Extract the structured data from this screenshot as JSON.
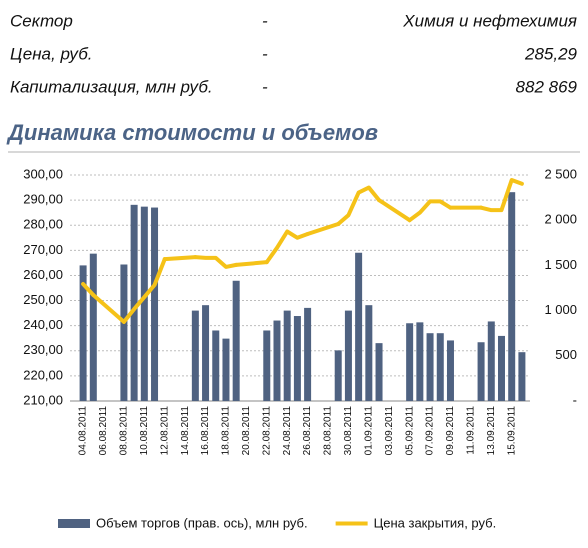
{
  "info": {
    "rows": [
      [
        "Сектор",
        "-",
        "Химия и нефтехимия"
      ],
      [
        "Цена, руб.",
        "-",
        "285,29"
      ],
      [
        "Капитализация, млн руб.",
        "-",
        "882 869"
      ]
    ]
  },
  "chart_data": {
    "type": "bar-line",
    "title": "Динамика стоимости и объемов",
    "categories": [
      "04.08.2011",
      null,
      "06.08.2011",
      null,
      "08.08.2011",
      null,
      "10.08.2011",
      null,
      "12.08.2011",
      null,
      "14.08.2011",
      null,
      "16.08.2011",
      null,
      "18.08.2011",
      null,
      "20.08.2011",
      null,
      "22.08.2011",
      null,
      "24.08.2011",
      null,
      "26.08.2011",
      null,
      "28.08.2011",
      null,
      "30.08.2011",
      null,
      "01.09.2011",
      null,
      "03.09.2011",
      null,
      "05.09.2011",
      null,
      "07.09.2011",
      null,
      "09.09.2011",
      null,
      "11.09.2011",
      null,
      "13.09.2011",
      null,
      "15.09.2011",
      null
    ],
    "series": [
      {
        "name": "Объем торгов (прав. ось), млн руб.",
        "type": "bar",
        "axis": "y2",
        "color": "#4f6281",
        "values": [
          1500,
          1630,
          null,
          null,
          1510,
          2170,
          2150,
          2140,
          null,
          null,
          null,
          1000,
          1060,
          780,
          690,
          1330,
          null,
          null,
          780,
          890,
          1000,
          940,
          1030,
          null,
          null,
          560,
          1000,
          1640,
          1060,
          640,
          null,
          null,
          860,
          870,
          750,
          750,
          670,
          null,
          null,
          650,
          880,
          720,
          2310,
          540
        ]
      },
      {
        "name": "Цена закрытия, руб.",
        "type": "line",
        "color": "#f5c218",
        "values": [
          256.6,
          252.2,
          null,
          null,
          241.5,
          246.6,
          251.4,
          256.2,
          266.5,
          null,
          null,
          267.3,
          267,
          267,
          263.4,
          264.2,
          null,
          null,
          265.3,
          271,
          277.5,
          275,
          276.5,
          null,
          null,
          280.5,
          284,
          293,
          295,
          290,
          null,
          null,
          282,
          285,
          289.5,
          289.5,
          287,
          null,
          null,
          287,
          286,
          286,
          298,
          296.5
        ]
      }
    ],
    "ylim": [
      210,
      300
    ],
    "yticks": [
      {
        "value": 210,
        "label": "210,00"
      },
      {
        "value": 220,
        "label": "220,00"
      },
      {
        "value": 230,
        "label": "230,00"
      },
      {
        "value": 240,
        "label": "240,00"
      },
      {
        "value": 250,
        "label": "250,00"
      },
      {
        "value": 260,
        "label": "260,00"
      },
      {
        "value": 270,
        "label": "270,00"
      },
      {
        "value": 280,
        "label": "280,00"
      },
      {
        "value": 290,
        "label": "290,00"
      },
      {
        "value": 300,
        "label": "300,00"
      }
    ],
    "y2lim": [
      0,
      2500
    ],
    "y2ticks": [
      {
        "value": 0,
        "label": "-"
      },
      {
        "value": 500,
        "label": "500"
      },
      {
        "value": 1000,
        "label": "1 000"
      },
      {
        "value": 1500,
        "label": "1 500"
      },
      {
        "value": 2000,
        "label": "2 000"
      },
      {
        "value": 2500,
        "label": "2 500"
      }
    ],
    "grid": true
  }
}
